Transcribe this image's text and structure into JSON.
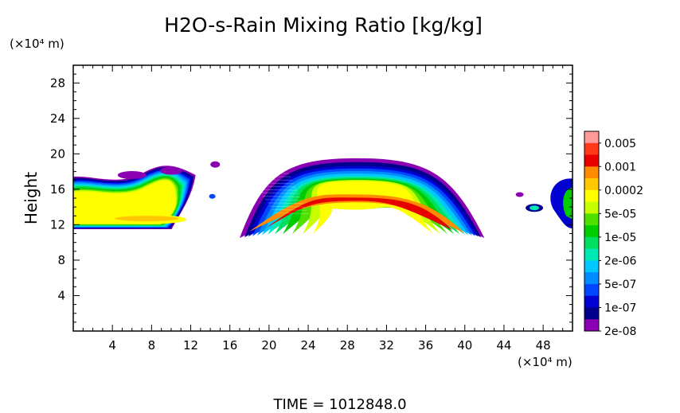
{
  "chart_data": {
    "type": "heatmap",
    "title": "H2O-s-Rain Mixing Ratio [kg/kg]",
    "xlabel": "",
    "ylabel": "Height",
    "x_unit": "(×10⁴ m)",
    "y_unit": "(×10⁴ m)",
    "xlim": [
      0,
      51
    ],
    "ylim": [
      0,
      30
    ],
    "x_ticks": [
      4,
      8,
      12,
      16,
      20,
      24,
      28,
      32,
      36,
      40,
      44,
      48
    ],
    "y_ticks": [
      4,
      8,
      12,
      16,
      20,
      24,
      28
    ],
    "colorbar": {
      "labels": [
        "0.005",
        "0.001",
        "0.0002",
        "5e-05",
        "1e-05",
        "2e-06",
        "5e-07",
        "1e-07",
        "2e-08"
      ],
      "colors": [
        "#ff9a9a",
        "#ff3a1a",
        "#e80000",
        "#ff8c00",
        "#ffc800",
        "#ffff00",
        "#c8ff00",
        "#50e000",
        "#00cc00",
        "#00e060",
        "#00e8b4",
        "#00c8ff",
        "#008cff",
        "#0046ff",
        "#0000d2",
        "#00008c",
        "#8c00b4"
      ]
    },
    "regions": [
      {
        "name": "left-cloud",
        "x_range": [
          0,
          12.5
        ],
        "y_range": [
          11.5,
          18.5
        ],
        "max_level": "0.0002"
      },
      {
        "name": "main-cloud",
        "x_range": [
          17,
          42
        ],
        "y_range": [
          10.5,
          19.5
        ],
        "max_level": "0.001",
        "core_x": 29,
        "core_y": 13.8
      },
      {
        "name": "right-fragments",
        "x_range": [
          46,
          51
        ],
        "y_range": [
          11.5,
          17.5
        ],
        "max_level": "1e-05"
      }
    ]
  },
  "footer": {
    "time_text": "TIME = 1012848.0"
  }
}
